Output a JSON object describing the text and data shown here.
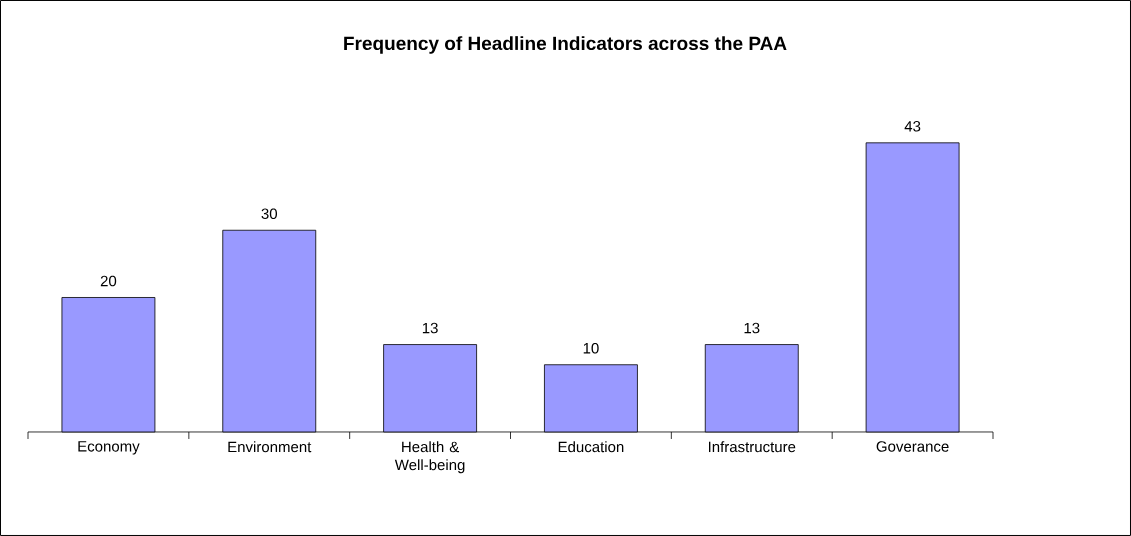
{
  "chart_data": {
    "type": "bar",
    "title": "Frequency of Headline Indicators across the PAA",
    "categories": [
      "Economy",
      "Environment",
      "Health & Well-being",
      "Education",
      "Infrastructure",
      "Goverance"
    ],
    "values": [
      20,
      30,
      13,
      10,
      13,
      43
    ],
    "color": "#9999ff",
    "data_labels": true
  }
}
